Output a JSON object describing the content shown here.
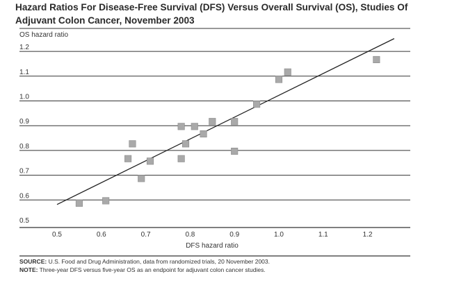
{
  "title": "Hazard Ratios For Disease-Free Survival (DFS) Versus Overall Survival (OS), Studies Of Adjuvant Colon Cancer, November 2003",
  "source_label": "SOURCE:",
  "source_text": " U.S. Food and Drug Administration, data from randomized trials, 20 November 2003.",
  "note_label": "NOTE:",
  "note_text": " Three-year DFS versus five-year OS as an endpoint for adjuvant colon cancer studies.",
  "colors": {
    "marker_fill": "#a9a9a9",
    "marker_stroke": "#8a8a8a",
    "line": "#222222",
    "grid": "#333333"
  },
  "chart_data": {
    "type": "scatter",
    "title": "Hazard Ratios For Disease-Free Survival (DFS) Versus Overall Survival (OS), Studies Of Adjuvant Colon Cancer, November 2003",
    "xlabel": "DFS hazard ratio",
    "ylabel": "OS hazard ratio",
    "xlim": [
      0.5,
      1.25
    ],
    "ylim": [
      0.5,
      1.2
    ],
    "xticks": [
      "0.5",
      "0.6",
      "0.7",
      "0.8",
      "0.9",
      "1.0",
      "1.1",
      "1.2"
    ],
    "yticks": [
      "0.5",
      "0.6",
      "0.7",
      "0.8",
      "0.9",
      "1.0",
      "1.1",
      "1.2"
    ],
    "grid": "horizontal",
    "points": [
      {
        "x": 0.55,
        "y": 0.57
      },
      {
        "x": 0.61,
        "y": 0.58
      },
      {
        "x": 0.66,
        "y": 0.75
      },
      {
        "x": 0.67,
        "y": 0.81
      },
      {
        "x": 0.69,
        "y": 0.67
      },
      {
        "x": 0.71,
        "y": 0.74
      },
      {
        "x": 0.78,
        "y": 0.88
      },
      {
        "x": 0.78,
        "y": 0.75
      },
      {
        "x": 0.79,
        "y": 0.81
      },
      {
        "x": 0.81,
        "y": 0.88
      },
      {
        "x": 0.83,
        "y": 0.85
      },
      {
        "x": 0.85,
        "y": 0.9
      },
      {
        "x": 0.9,
        "y": 0.9
      },
      {
        "x": 0.9,
        "y": 0.78
      },
      {
        "x": 0.95,
        "y": 0.97
      },
      {
        "x": 1.0,
        "y": 1.07
      },
      {
        "x": 1.02,
        "y": 1.1
      },
      {
        "x": 1.22,
        "y": 1.15
      }
    ],
    "fit_line": {
      "x": [
        0.5,
        1.26
      ],
      "y": [
        0.565,
        1.235
      ]
    }
  }
}
